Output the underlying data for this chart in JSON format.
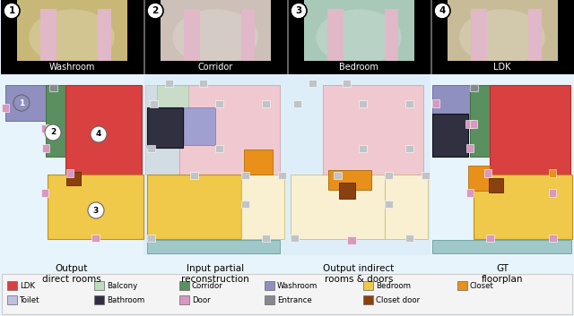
{
  "photo_labels": [
    "Washroom",
    "Corridor",
    "Bedroom",
    "LDK"
  ],
  "photo_numbers": [
    "1",
    "2",
    "3",
    "4"
  ],
  "fp_captions": [
    [
      "Output",
      "direct rooms"
    ],
    [
      "Input partial",
      "reconstruction"
    ],
    [
      "Output indirect",
      "rooms & doors"
    ],
    [
      "GT",
      "floorplan"
    ]
  ],
  "colors": {
    "RED": "#d94040",
    "YELLOW": "#f0c84a",
    "GREEN": "#5a9060",
    "LIGHT_PURPLE": "#9090c0",
    "DARK": "#303040",
    "PINK": "#d898c0",
    "GRAY": "#888890",
    "BROWN": "#8b4010",
    "LIGHT_GREEN": "#c0dcc0",
    "ORANGE": "#e8901a",
    "TEAL": "#a0c8c8",
    "LIGHT_PINK": "#f0c8d0",
    "LIGHT_YELLOW": "#f8f0d0",
    "LIGHT_GRAY": "#c8ccd0",
    "LIGHT_BLUE": "#dce8f0",
    "BG": "#e8f4fb"
  },
  "legend_row1": [
    [
      "LDK",
      "#d94040"
    ],
    [
      "Balcony",
      "#c0dcc0"
    ],
    [
      "Corridor",
      "#5a9060"
    ],
    [
      "Washroom",
      "#9090c0"
    ],
    [
      "Bedroom",
      "#f0c84a"
    ],
    [
      "Closet",
      "#e8901a"
    ]
  ],
  "legend_row2": [
    [
      "Toilet",
      "#c0c0e0"
    ],
    [
      "Bathroom",
      "#303040"
    ],
    [
      "Door",
      "#d898c0"
    ],
    [
      "Entrance",
      "#888890"
    ],
    [
      "Closet door",
      "#8b4010"
    ]
  ]
}
